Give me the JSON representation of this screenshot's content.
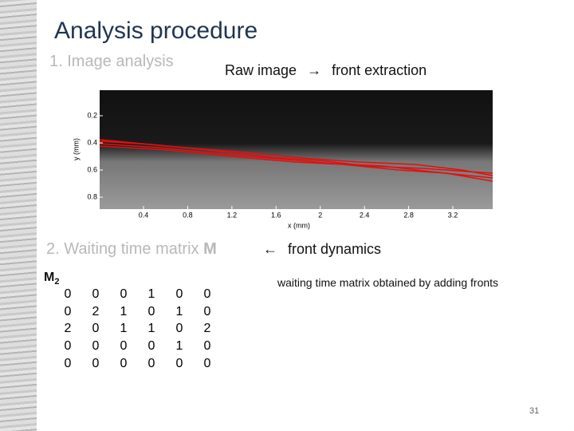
{
  "title": "Analysis procedure",
  "section1": {
    "heading": "1. Image analysis",
    "left": "Raw image",
    "arrow": "→",
    "right": "front extraction"
  },
  "figure": {
    "y_label": "y (mm)",
    "x_label": "x (mm)",
    "yticks": [
      0.2,
      0.4,
      0.6,
      0.8
    ],
    "xticks": [
      0.4,
      0.8,
      1.2,
      1.6,
      2,
      2.4,
      2.8,
      3.2
    ]
  },
  "section2": {
    "heading": "2. Waiting time matrix",
    "symbol": "M",
    "arrow": "←",
    "right": "front dynamics"
  },
  "matrix": {
    "name": "M",
    "subscript": "2",
    "rows": [
      [
        0,
        0,
        0,
        1,
        0,
        0
      ],
      [
        0,
        2,
        1,
        0,
        1,
        0
      ],
      [
        2,
        0,
        1,
        1,
        0,
        2
      ],
      [
        0,
        0,
        0,
        0,
        1,
        0
      ],
      [
        0,
        0,
        0,
        0,
        0,
        0
      ]
    ],
    "caption": "waiting time matrix obtained by adding fronts"
  },
  "page_number": "31"
}
